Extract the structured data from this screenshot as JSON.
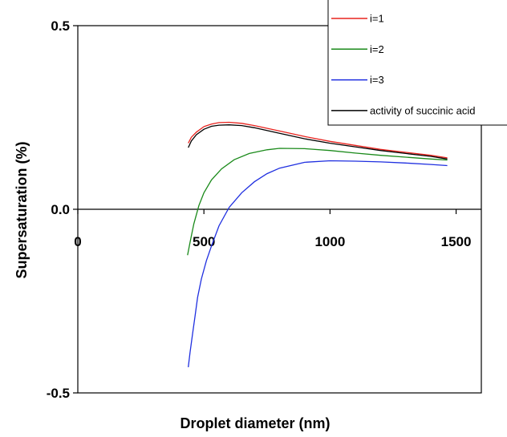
{
  "chart_data": {
    "type": "line",
    "xlabel": "Droplet diameter (nm)",
    "ylabel": "Supersaturation (%)",
    "xlim": [
      0,
      1600
    ],
    "ylim": [
      -0.5,
      0.5
    ],
    "x_ticks": [
      {
        "value": 0,
        "label": "0"
      },
      {
        "value": 500,
        "label": "500"
      },
      {
        "value": 1000,
        "label": "1000"
      },
      {
        "value": 1500,
        "label": "1500"
      }
    ],
    "y_ticks": [
      {
        "value": 0.5,
        "label": "0.5"
      },
      {
        "value": 0.0,
        "label": "0.0"
      },
      {
        "value": -0.5,
        "label": "-0.5"
      }
    ],
    "legend_position": "top-right",
    "series": [
      {
        "name": "i=1",
        "color": "#e8231e",
        "x": [
          438,
          450,
          470,
          500,
          530,
          560,
          600,
          650,
          700,
          800,
          900,
          1000,
          1100,
          1200,
          1300,
          1400,
          1465
        ],
        "y": [
          0.18,
          0.196,
          0.21,
          0.225,
          0.232,
          0.236,
          0.237,
          0.234,
          0.228,
          0.213,
          0.198,
          0.185,
          0.174,
          0.163,
          0.155,
          0.147,
          0.14
        ]
      },
      {
        "name": "i=2",
        "color": "#1a8a1a",
        "x": [
          435,
          445,
          460,
          480,
          500,
          530,
          570,
          620,
          680,
          750,
          800,
          900,
          1000,
          1100,
          1200,
          1300,
          1400,
          1465
        ],
        "y": [
          -0.125,
          -0.09,
          -0.04,
          0.01,
          0.045,
          0.08,
          0.11,
          0.135,
          0.152,
          0.162,
          0.166,
          0.165,
          0.16,
          0.153,
          0.147,
          0.142,
          0.137,
          0.134
        ]
      },
      {
        "name": "i=3",
        "color": "#1f2fe0",
        "x": [
          438,
          445,
          455,
          465,
          475,
          490,
          510,
          530,
          560,
          600,
          650,
          700,
          750,
          800,
          900,
          1000,
          1100,
          1200,
          1300,
          1400,
          1465
        ],
        "y": [
          -0.43,
          -0.39,
          -0.34,
          -0.29,
          -0.24,
          -0.19,
          -0.14,
          -0.1,
          -0.045,
          0.005,
          0.045,
          0.075,
          0.097,
          0.112,
          0.128,
          0.132,
          0.131,
          0.129,
          0.126,
          0.122,
          0.119
        ]
      },
      {
        "name": "activity of succinic acid",
        "color": "#000000",
        "x": [
          438,
          450,
          470,
          500,
          530,
          560,
          600,
          650,
          700,
          800,
          900,
          1000,
          1100,
          1200,
          1300,
          1400,
          1465
        ],
        "y": [
          0.168,
          0.186,
          0.203,
          0.218,
          0.226,
          0.229,
          0.23,
          0.228,
          0.222,
          0.207,
          0.192,
          0.18,
          0.17,
          0.16,
          0.152,
          0.144,
          0.137
        ]
      }
    ]
  }
}
